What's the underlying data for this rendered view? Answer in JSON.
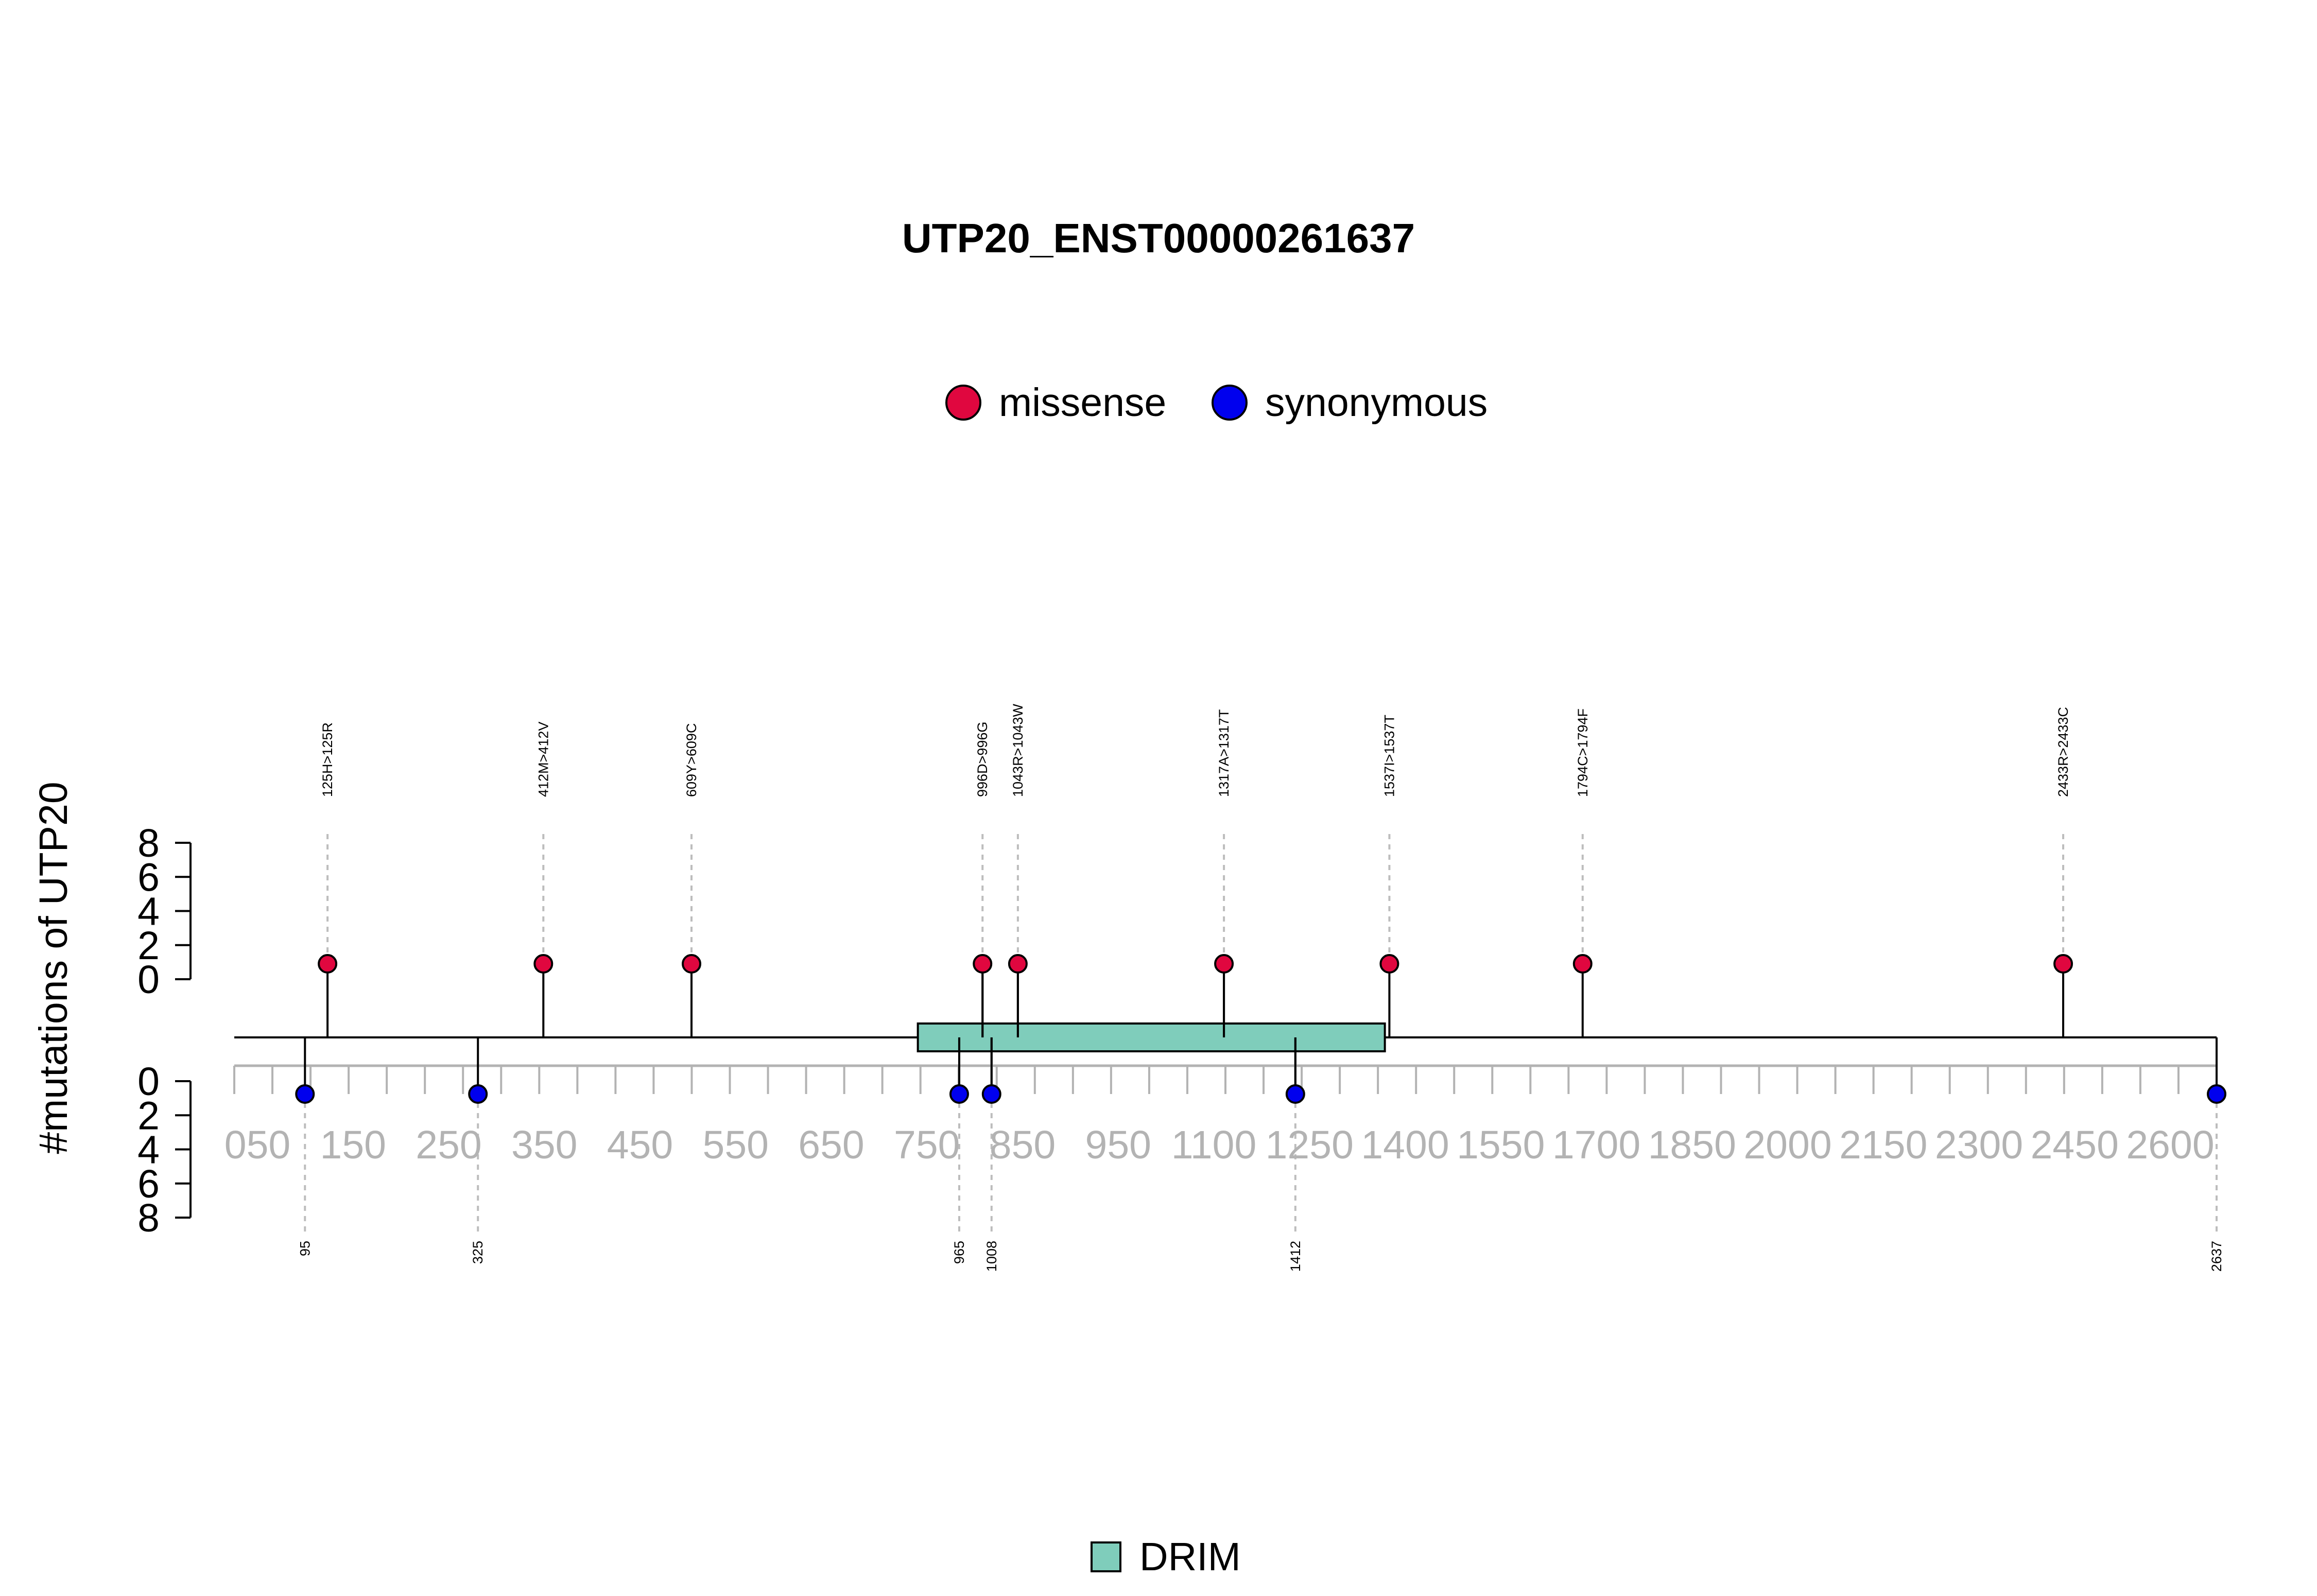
{
  "chart_data": {
    "type": "lollipop",
    "title": "UTP20_ENST00000261637",
    "ylabel": "#mutations of UTP20",
    "protein_length": 2637,
    "x_range": [
      1,
      2637
    ],
    "x_tick_labels": [
      "050",
      "150",
      "250",
      "350",
      "450",
      "550",
      "650",
      "750",
      "850",
      "950",
      "1100",
      "1250",
      "1400",
      "1550",
      "1700",
      "1850",
      "2000",
      "2150",
      "2300",
      "2450",
      "2600"
    ],
    "y_upper_ticks": [
      "0",
      "2",
      "4",
      "6",
      "8"
    ],
    "y_lower_ticks": [
      "0",
      "2",
      "4",
      "6",
      "8"
    ],
    "y_range": [
      0,
      8
    ],
    "legend": [
      {
        "name": "missense",
        "color": "#e0073f"
      },
      {
        "name": "synonymous",
        "color": "#0000ee"
      }
    ],
    "domain_legend": [
      {
        "name": "DRIM",
        "color": "#7fcdbb"
      }
    ],
    "domains": [
      {
        "name": "DRIM",
        "start": 910,
        "end": 1531,
        "color": "#7fcdbb"
      }
    ],
    "mutations_missense": [
      {
        "position": 125,
        "label": "125H>125R",
        "count": 1
      },
      {
        "position": 412,
        "label": "412M>412V",
        "count": 1
      },
      {
        "position": 609,
        "label": "609Y>609C",
        "count": 1
      },
      {
        "position": 996,
        "label": "996D>996G",
        "count": 1
      },
      {
        "position": 1043,
        "label": "1043R>1043W",
        "count": 1
      },
      {
        "position": 1317,
        "label": "1317A>1317T",
        "count": 1
      },
      {
        "position": 1537,
        "label": "1537I>1537T",
        "count": 1
      },
      {
        "position": 1794,
        "label": "1794C>1794F",
        "count": 1
      },
      {
        "position": 2433,
        "label": "2433R>2433C",
        "count": 1
      }
    ],
    "mutations_synonymous": [
      {
        "position": 95,
        "label": "95",
        "count": 1
      },
      {
        "position": 325,
        "label": "325",
        "count": 1
      },
      {
        "position": 965,
        "label": "965",
        "count": 1
      },
      {
        "position": 1008,
        "label": "1008",
        "count": 1
      },
      {
        "position": 1412,
        "label": "1412",
        "count": 1
      },
      {
        "position": 2637,
        "label": "2637",
        "count": 1
      }
    ],
    "colors": {
      "missense": "#e0073f",
      "synonymous": "#0000ee",
      "domain": "#7fcdbb",
      "axis_grey": "#b3b3b3",
      "guide_grey": "#bdbdbd"
    }
  }
}
